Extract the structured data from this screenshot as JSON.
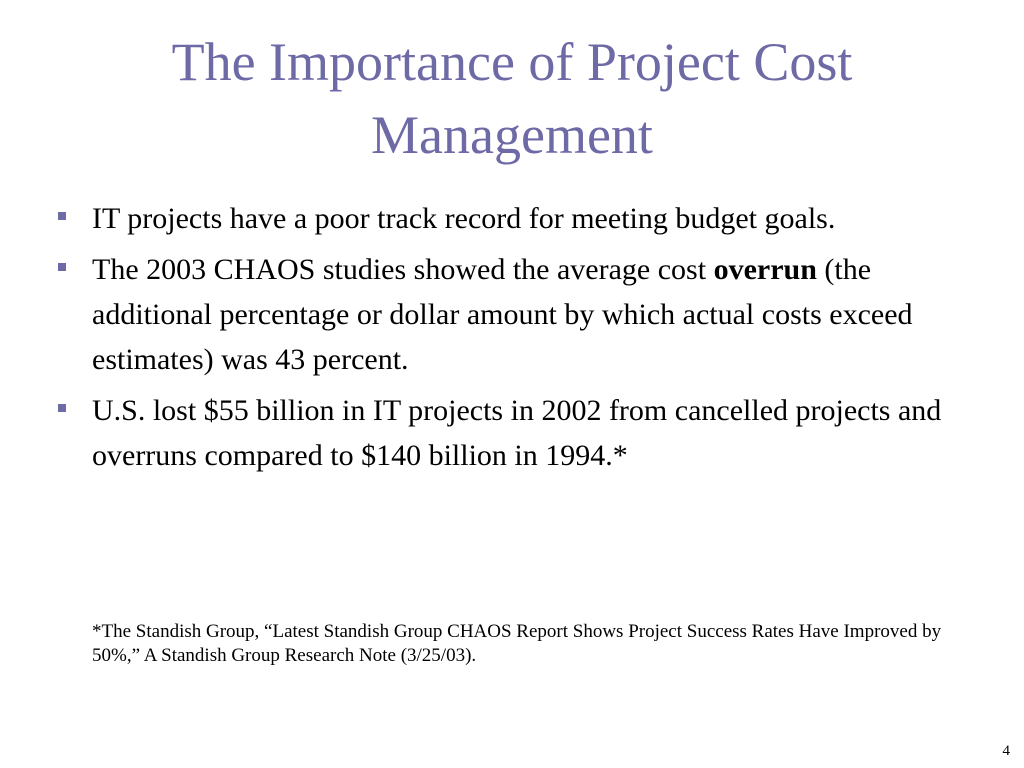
{
  "slide": {
    "title_line1": "The Importance of Project Cost",
    "title_line2": "Management",
    "bullets": [
      {
        "text": "IT projects have a poor track record for meeting budget goals."
      },
      {
        "text_before": "The 2003 CHAOS studies showed the average cost ",
        "bold_term": "overrun",
        "text_after": " (the additional percentage or dollar amount by which actual costs exceed estimates) was 43 percent."
      },
      {
        "text": "U.S. lost $55 billion in IT projects in 2002 from cancelled projects and overruns compared to $140 billion in 1994.*"
      }
    ],
    "footnote": "*The Standish Group, “Latest Standish Group CHAOS Report Shows Project Success Rates Have Improved by 50%,” A Standish Group Research Note (3/25/03).",
    "page_number": "4",
    "colors": {
      "title": "#6d6aa6",
      "bullet_marker": "#6d6aa6",
      "body_text": "#000000"
    }
  }
}
